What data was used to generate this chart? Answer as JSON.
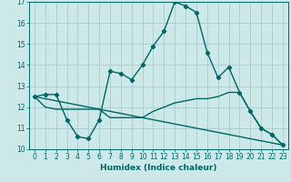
{
  "xlabel": "Humidex (Indice chaleur)",
  "ylabel": "",
  "bg_color": "#cce8e8",
  "grid_color": "#aacccc",
  "line_color": "#006666",
  "xlim": [
    -0.5,
    23.5
  ],
  "ylim": [
    10,
    17
  ],
  "yticks": [
    10,
    11,
    12,
    13,
    14,
    15,
    16,
    17
  ],
  "xticks": [
    0,
    1,
    2,
    3,
    4,
    5,
    6,
    7,
    8,
    9,
    10,
    11,
    12,
    13,
    14,
    15,
    16,
    17,
    18,
    19,
    20,
    21,
    22,
    23
  ],
  "series1_x": [
    0,
    1,
    2,
    3,
    4,
    5,
    6,
    7,
    8,
    9,
    10,
    11,
    12,
    13,
    14,
    15,
    16,
    17,
    18,
    19,
    20,
    21,
    22,
    23
  ],
  "series1_y": [
    12.5,
    12.6,
    12.6,
    11.4,
    10.6,
    10.5,
    11.4,
    13.7,
    13.6,
    13.3,
    14.0,
    14.9,
    15.6,
    17.0,
    16.8,
    16.5,
    14.6,
    13.4,
    13.9,
    12.7,
    11.8,
    11.0,
    10.7,
    10.2
  ],
  "series2_x": [
    0,
    1,
    2,
    3,
    4,
    5,
    6,
    7,
    8,
    9,
    10,
    11,
    12,
    13,
    14,
    15,
    16,
    17,
    18,
    19,
    20,
    21,
    22,
    23
  ],
  "series2_y": [
    12.5,
    12.0,
    11.9,
    11.9,
    11.9,
    11.9,
    11.9,
    11.5,
    11.5,
    11.5,
    11.5,
    11.8,
    12.0,
    12.2,
    12.3,
    12.4,
    12.4,
    12.5,
    12.7,
    12.7,
    11.8,
    11.0,
    10.7,
    10.2
  ],
  "series3_x": [
    0,
    23
  ],
  "series3_y": [
    12.5,
    10.2
  ],
  "marker": "D",
  "marker_size": 2.2,
  "line_width": 1.0,
  "font_size_axis": 5.5,
  "font_size_label": 6.5
}
